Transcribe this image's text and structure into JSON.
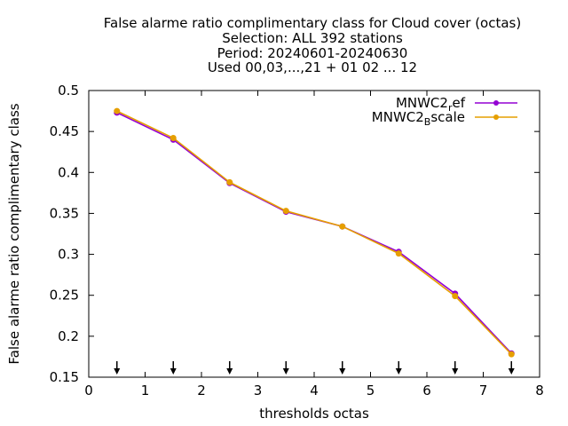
{
  "chart_data": {
    "type": "line",
    "title_lines": [
      "False alarme ratio complimentary class  for Cloud cover (octas)",
      "Selection: ALL    392 stations",
      "Period: 20240601-20240630",
      "Used 00,03,...,21 + 01 02 ... 12"
    ],
    "xlabel": "thresholds octas",
    "ylabel": "False alarme ratio complimentary class",
    "xlim": [
      0,
      8
    ],
    "ylim": [
      0.15,
      0.5
    ],
    "xticks": [
      "0",
      "1",
      "2",
      "3",
      "4",
      "5",
      "6",
      "7",
      "8"
    ],
    "yticks": [
      "0.15",
      "0.2",
      "0.25",
      "0.3",
      "0.35",
      "0.4",
      "0.45",
      "0.5"
    ],
    "grid": false,
    "legend_position": "top-right",
    "x": [
      0.5,
      1.5,
      2.5,
      3.5,
      4.5,
      5.5,
      6.5,
      7.5
    ],
    "series": [
      {
        "name": "MNWC2_ref",
        "name_main": "MNWC2",
        "name_sub": "r",
        "name_tail": "ef",
        "color": "#9400d3",
        "values": [
          0.473,
          0.44,
          0.387,
          0.352,
          0.334,
          0.303,
          0.252,
          0.179
        ]
      },
      {
        "name": "MNWC2_Bscale",
        "name_main": "MNWC2",
        "name_sub": "B",
        "name_tail": "scale",
        "color": "#e69f00",
        "values": [
          0.475,
          0.442,
          0.388,
          0.353,
          0.334,
          0.301,
          0.249,
          0.178
        ]
      }
    ],
    "arrow_markers_x": [
      0.5,
      1.5,
      2.5,
      3.5,
      4.5,
      5.5,
      6.5,
      7.5
    ]
  }
}
